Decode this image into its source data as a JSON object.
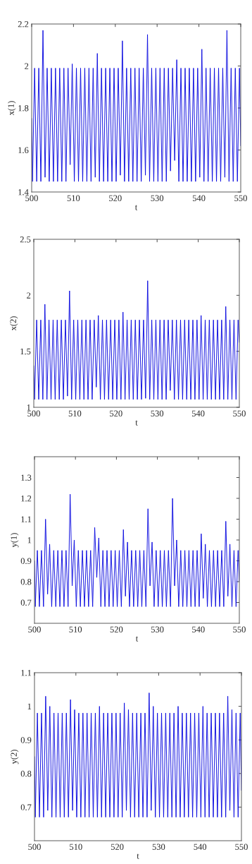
{
  "chart_data": [
    {
      "type": "line",
      "xlabel": "t",
      "ylabel": "x(1)",
      "xlim": [
        500,
        550
      ],
      "xticks": [
        500,
        510,
        520,
        530,
        540,
        550
      ],
      "ylim": [
        1.4,
        2.2
      ],
      "yticks": [
        1.4,
        1.6,
        1.8,
        2,
        2.2
      ],
      "x": [
        500,
        500.2,
        500.7,
        501.2,
        501.7,
        502.2,
        502.7,
        503.2,
        503.7,
        504.2,
        504.7,
        505.2,
        505.7,
        506.2,
        506.7,
        507.2,
        507.7,
        508.2,
        508.7,
        509.2,
        509.7,
        510.2,
        510.7,
        511.2,
        511.7,
        512.2,
        512.7,
        513.2,
        513.7,
        514.2,
        514.7,
        515.2,
        515.7,
        516.2,
        516.7,
        517.2,
        517.7,
        518.2,
        518.7,
        519.2,
        519.7,
        520.2,
        520.7,
        521.2,
        521.7,
        522.2,
        522.7,
        523.2,
        523.7,
        524.2,
        524.7,
        525.2,
        525.7,
        526.2,
        526.7,
        527.2,
        527.7,
        528.2,
        528.7,
        529.2,
        529.7,
        530.2,
        530.7,
        531.2,
        531.7,
        532.2,
        532.7,
        533.2,
        533.7,
        534.2,
        534.7,
        535.2,
        535.7,
        536.2,
        536.7,
        537.2,
        537.7,
        538.2,
        538.7,
        539.2,
        539.7,
        540.2,
        540.7,
        541.2,
        541.7,
        542.2,
        542.7,
        543.2,
        543.7,
        544.2,
        544.7,
        545.2,
        545.7,
        546.2,
        546.7,
        547.2,
        547.7,
        548.2,
        548.7,
        549.2,
        549.7,
        550
      ],
      "series": [
        {
          "color": "#1010e0",
          "values": [
            1.75,
            1.45,
            1.99,
            1.45,
            1.99,
            1.45,
            2.17,
            1.47,
            1.99,
            1.45,
            1.99,
            1.45,
            1.99,
            1.45,
            1.99,
            1.45,
            1.99,
            1.45,
            1.99,
            1.53,
            2.01,
            1.45,
            1.99,
            1.45,
            1.99,
            1.45,
            1.99,
            1.45,
            1.99,
            1.45,
            1.99,
            1.47,
            2.06,
            1.45,
            1.99,
            1.45,
            1.99,
            1.45,
            1.99,
            1.45,
            1.99,
            1.45,
            1.99,
            1.48,
            2.12,
            1.45,
            1.99,
            1.45,
            1.99,
            1.45,
            1.99,
            1.45,
            1.99,
            1.45,
            1.99,
            1.48,
            2.15,
            1.45,
            1.99,
            1.45,
            1.99,
            1.45,
            1.99,
            1.45,
            1.99,
            1.45,
            1.99,
            1.5,
            1.99,
            1.55,
            2.03,
            1.45,
            1.99,
            1.45,
            1.99,
            1.45,
            1.99,
            1.45,
            1.99,
            1.45,
            1.99,
            1.47,
            2.08,
            1.45,
            1.99,
            1.45,
            1.99,
            1.45,
            1.99,
            1.45,
            1.99,
            1.45,
            1.99,
            1.47,
            2.17,
            1.45,
            1.99,
            1.45,
            1.99,
            1.45,
            1.99,
            1.62
          ]
        }
      ]
    },
    {
      "type": "line",
      "xlabel": "t",
      "ylabel": "x(2)",
      "xlim": [
        500,
        550
      ],
      "xticks": [
        500,
        510,
        520,
        530,
        540,
        550
      ],
      "ylim": [
        1,
        2.5
      ],
      "yticks": [
        1,
        1.5,
        2,
        2.5
      ],
      "x": [
        500,
        500.2,
        500.7,
        501.2,
        501.7,
        502.2,
        502.7,
        503.2,
        503.7,
        504.2,
        504.7,
        505.2,
        505.7,
        506.2,
        506.7,
        507.2,
        507.7,
        508.2,
        508.7,
        509.2,
        509.7,
        510.2,
        510.7,
        511.2,
        511.7,
        512.2,
        512.7,
        513.2,
        513.7,
        514.2,
        514.7,
        515.2,
        515.7,
        516.2,
        516.7,
        517.2,
        517.7,
        518.2,
        518.7,
        519.2,
        519.7,
        520.2,
        520.7,
        521.2,
        521.7,
        522.2,
        522.7,
        523.2,
        523.7,
        524.2,
        524.7,
        525.2,
        525.7,
        526.2,
        526.7,
        527.2,
        527.7,
        528.2,
        528.7,
        529.2,
        529.7,
        530.2,
        530.7,
        531.2,
        531.7,
        532.2,
        532.7,
        533.2,
        533.7,
        534.2,
        534.7,
        535.2,
        535.7,
        536.2,
        536.7,
        537.2,
        537.7,
        538.2,
        538.7,
        539.2,
        539.7,
        540.2,
        540.7,
        541.2,
        541.7,
        542.2,
        542.7,
        543.2,
        543.7,
        544.2,
        544.7,
        545.2,
        545.7,
        546.2,
        546.7,
        547.2,
        547.7,
        548.2,
        548.7,
        549.2,
        549.7,
        550
      ],
      "series": [
        {
          "color": "#1010e0",
          "values": [
            1.37,
            1.07,
            1.78,
            1.07,
            1.78,
            1.07,
            1.92,
            1.07,
            1.78,
            1.07,
            1.78,
            1.07,
            1.78,
            1.07,
            1.78,
            1.07,
            1.78,
            1.1,
            2.04,
            1.07,
            1.78,
            1.07,
            1.78,
            1.07,
            1.78,
            1.07,
            1.78,
            1.07,
            1.78,
            1.07,
            1.78,
            1.18,
            1.82,
            1.07,
            1.78,
            1.07,
            1.78,
            1.07,
            1.78,
            1.07,
            1.78,
            1.07,
            1.78,
            1.07,
            1.85,
            1.07,
            1.78,
            1.07,
            1.78,
            1.07,
            1.78,
            1.07,
            1.78,
            1.07,
            1.78,
            1.08,
            2.13,
            1.07,
            1.78,
            1.07,
            1.78,
            1.07,
            1.78,
            1.07,
            1.78,
            1.07,
            1.78,
            1.15,
            1.78,
            1.07,
            1.78,
            1.07,
            1.78,
            1.07,
            1.78,
            1.07,
            1.78,
            1.07,
            1.78,
            1.07,
            1.78,
            1.07,
            1.82,
            1.07,
            1.78,
            1.07,
            1.78,
            1.07,
            1.78,
            1.07,
            1.78,
            1.07,
            1.78,
            1.07,
            1.9,
            1.07,
            1.78,
            1.07,
            1.78,
            1.07,
            1.78,
            1.58
          ]
        }
      ]
    },
    {
      "type": "line",
      "xlabel": "t",
      "ylabel": "y(1)",
      "xlim": [
        500,
        550
      ],
      "xticks": [
        500,
        510,
        520,
        530,
        540,
        550
      ],
      "ylim": [
        0.6,
        1.4
      ],
      "yticks": [
        0.7,
        0.8,
        0.9,
        1,
        1.1,
        1.2,
        1.3
      ],
      "x": [
        500,
        500.2,
        500.7,
        501.2,
        501.7,
        502.2,
        502.7,
        503.2,
        503.7,
        504.2,
        504.7,
        505.2,
        505.7,
        506.2,
        506.7,
        507.2,
        507.7,
        508.2,
        508.7,
        509.2,
        509.7,
        510.2,
        510.7,
        511.2,
        511.7,
        512.2,
        512.7,
        513.2,
        513.7,
        514.2,
        514.7,
        515.2,
        515.7,
        516.2,
        516.7,
        517.2,
        517.7,
        518.2,
        518.7,
        519.2,
        519.7,
        520.2,
        520.7,
        521.2,
        521.7,
        522.2,
        522.7,
        523.2,
        523.7,
        524.2,
        524.7,
        525.2,
        525.7,
        526.2,
        526.7,
        527.2,
        527.7,
        528.2,
        528.7,
        529.2,
        529.7,
        530.2,
        530.7,
        531.2,
        531.7,
        532.2,
        532.7,
        533.2,
        533.7,
        534.2,
        534.7,
        535.2,
        535.7,
        536.2,
        536.7,
        537.2,
        537.7,
        538.2,
        538.7,
        539.2,
        539.7,
        540.2,
        540.7,
        541.2,
        541.7,
        542.2,
        542.7,
        543.2,
        543.7,
        544.2,
        544.7,
        545.2,
        545.7,
        546.2,
        546.7,
        547.2,
        547.7,
        548.2,
        548.7,
        549.2,
        549.7,
        550
      ],
      "series": [
        {
          "color": "#1010e0",
          "values": [
            0.9,
            0.68,
            0.95,
            0.68,
            0.95,
            0.68,
            1.1,
            0.74,
            0.98,
            0.68,
            0.95,
            0.68,
            0.95,
            0.68,
            0.95,
            0.68,
            0.95,
            0.68,
            1.22,
            0.78,
            1.0,
            0.68,
            0.95,
            0.68,
            0.95,
            0.68,
            0.95,
            0.68,
            0.95,
            0.68,
            1.06,
            0.82,
            1.01,
            0.68,
            0.95,
            0.68,
            0.95,
            0.68,
            0.95,
            0.68,
            0.95,
            0.68,
            0.95,
            0.68,
            1.05,
            0.73,
            0.99,
            0.68,
            0.95,
            0.68,
            0.95,
            0.68,
            0.95,
            0.68,
            0.95,
            0.68,
            1.15,
            0.78,
            0.99,
            0.68,
            0.95,
            0.68,
            0.95,
            0.68,
            0.95,
            0.68,
            0.95,
            0.68,
            1.2,
            0.78,
            1.0,
            0.68,
            0.95,
            0.68,
            0.95,
            0.68,
            0.95,
            0.68,
            0.95,
            0.68,
            0.95,
            0.68,
            1.03,
            0.72,
            0.98,
            0.68,
            0.95,
            0.68,
            0.95,
            0.68,
            0.95,
            0.68,
            0.95,
            0.68,
            1.09,
            0.73,
            0.98,
            0.68,
            0.95,
            0.68,
            0.95,
            0.8
          ]
        }
      ]
    },
    {
      "type": "line",
      "xlabel": "t",
      "ylabel": "y(2)",
      "xlim": [
        500,
        550
      ],
      "xticks": [
        500,
        510,
        520,
        530,
        540,
        550
      ],
      "ylim": [
        0.6,
        1.1
      ],
      "yticks": [
        0.7,
        0.8,
        0.9,
        1,
        1.1
      ],
      "x": [
        500,
        500.2,
        500.7,
        501.2,
        501.7,
        502.2,
        502.7,
        503.2,
        503.7,
        504.2,
        504.7,
        505.2,
        505.7,
        506.2,
        506.7,
        507.2,
        507.7,
        508.2,
        508.7,
        509.2,
        509.7,
        510.2,
        510.7,
        511.2,
        511.7,
        512.2,
        512.7,
        513.2,
        513.7,
        514.2,
        514.7,
        515.2,
        515.7,
        516.2,
        516.7,
        517.2,
        517.7,
        518.2,
        518.7,
        519.2,
        519.7,
        520.2,
        520.7,
        521.2,
        521.7,
        522.2,
        522.7,
        523.2,
        523.7,
        524.2,
        524.7,
        525.2,
        525.7,
        526.2,
        526.7,
        527.2,
        527.7,
        528.2,
        528.7,
        529.2,
        529.7,
        530.2,
        530.7,
        531.2,
        531.7,
        532.2,
        532.7,
        533.2,
        533.7,
        534.2,
        534.7,
        535.2,
        535.7,
        536.2,
        536.7,
        537.2,
        537.7,
        538.2,
        538.7,
        539.2,
        539.7,
        540.2,
        540.7,
        541.2,
        541.7,
        542.2,
        542.7,
        543.2,
        543.7,
        544.2,
        544.7,
        545.2,
        545.7,
        546.2,
        546.7,
        547.2,
        547.7,
        548.2,
        548.7,
        549.2,
        549.7,
        550
      ],
      "series": [
        {
          "color": "#1010e0",
          "values": [
            0.85,
            0.67,
            0.98,
            0.67,
            0.98,
            0.67,
            1.03,
            0.69,
            1.0,
            0.67,
            0.98,
            0.67,
            0.98,
            0.67,
            0.98,
            0.67,
            0.98,
            0.67,
            1.02,
            0.69,
            0.99,
            0.67,
            0.98,
            0.67,
            0.98,
            0.67,
            0.98,
            0.67,
            0.98,
            0.67,
            0.98,
            0.67,
            1.0,
            0.67,
            0.98,
            0.67,
            0.98,
            0.67,
            0.98,
            0.67,
            0.98,
            0.67,
            0.98,
            0.67,
            1.01,
            0.69,
            0.99,
            0.67,
            0.98,
            0.67,
            0.98,
            0.67,
            0.98,
            0.67,
            0.98,
            0.67,
            1.04,
            0.69,
            1.0,
            0.67,
            0.98,
            0.67,
            0.98,
            0.67,
            0.98,
            0.67,
            0.98,
            0.67,
            0.98,
            0.67,
            1.0,
            0.67,
            0.98,
            0.67,
            0.98,
            0.67,
            0.98,
            0.67,
            0.98,
            0.67,
            0.98,
            0.67,
            1.0,
            0.67,
            0.98,
            0.67,
            0.98,
            0.67,
            0.98,
            0.67,
            0.98,
            0.67,
            0.98,
            0.67,
            1.03,
            0.69,
            0.99,
            0.67,
            0.98,
            0.67,
            0.98,
            0.75
          ]
        }
      ]
    }
  ]
}
